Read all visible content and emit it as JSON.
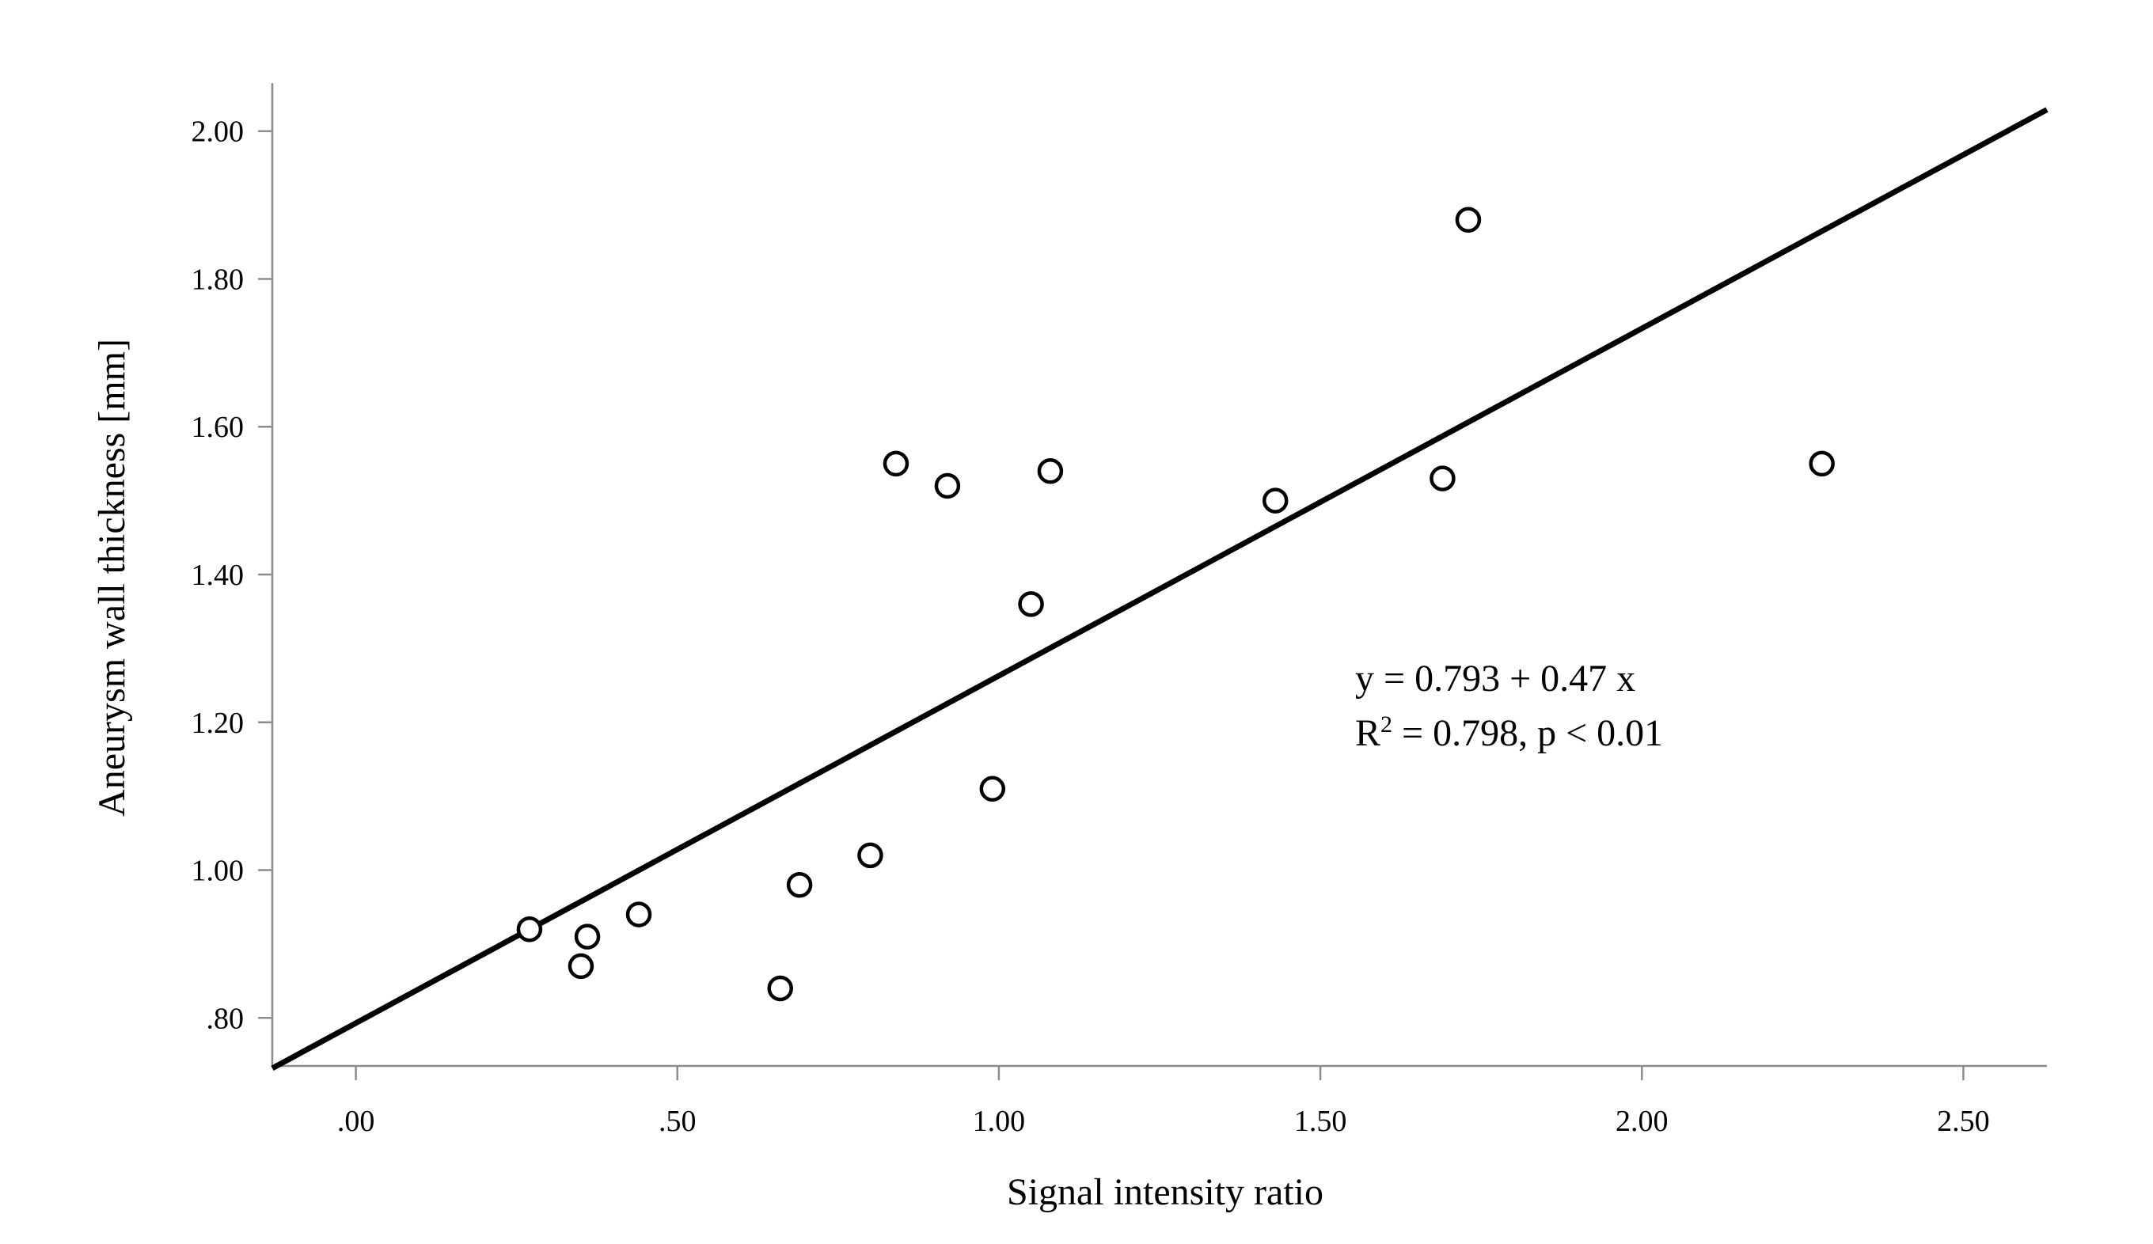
{
  "chart_data": {
    "type": "scatter",
    "title": "",
    "xlabel": "Signal intensity ratio",
    "ylabel": "Aneurysm wall thickness [mm]",
    "xlim": [
      -0.13,
      2.63
    ],
    "ylim": [
      0.735,
      2.065
    ],
    "x_ticks": [
      {
        "value": 0.0,
        "label": ".00"
      },
      {
        "value": 0.5,
        "label": ".50"
      },
      {
        "value": 1.0,
        "label": "1.00"
      },
      {
        "value": 1.5,
        "label": "1.50"
      },
      {
        "value": 2.0,
        "label": "2.00"
      },
      {
        "value": 2.5,
        "label": "2.50"
      }
    ],
    "y_ticks": [
      {
        "value": 0.8,
        "label": ".80"
      },
      {
        "value": 1.0,
        "label": "1.00"
      },
      {
        "value": 1.2,
        "label": "1.20"
      },
      {
        "value": 1.4,
        "label": "1.40"
      },
      {
        "value": 1.6,
        "label": "1.60"
      },
      {
        "value": 1.8,
        "label": "1.80"
      },
      {
        "value": 2.0,
        "label": "2.00"
      }
    ],
    "grid": false,
    "legend": "none",
    "points": [
      {
        "x": 0.27,
        "y": 0.92
      },
      {
        "x": 0.35,
        "y": 0.87
      },
      {
        "x": 0.36,
        "y": 0.91
      },
      {
        "x": 0.44,
        "y": 0.94
      },
      {
        "x": 0.66,
        "y": 0.84
      },
      {
        "x": 0.69,
        "y": 0.98
      },
      {
        "x": 0.8,
        "y": 1.02
      },
      {
        "x": 0.84,
        "y": 1.55
      },
      {
        "x": 0.92,
        "y": 1.52
      },
      {
        "x": 0.99,
        "y": 1.11
      },
      {
        "x": 1.05,
        "y": 1.36
      },
      {
        "x": 1.08,
        "y": 1.54
      },
      {
        "x": 1.43,
        "y": 1.5
      },
      {
        "x": 1.69,
        "y": 1.53
      },
      {
        "x": 1.73,
        "y": 1.88
      },
      {
        "x": 2.28,
        "y": 1.55
      }
    ],
    "fit": {
      "intercept": 0.793,
      "slope": 0.47
    },
    "annotation": {
      "line1": "y = 0.793 + 0.47 x",
      "line2_prefix": "R",
      "line2_sup": "2",
      "line2_rest": " = 0.798, p < 0.01"
    },
    "colors": {
      "marker": "#000000",
      "line": "#000000",
      "axis": "#8c8c8c"
    }
  }
}
